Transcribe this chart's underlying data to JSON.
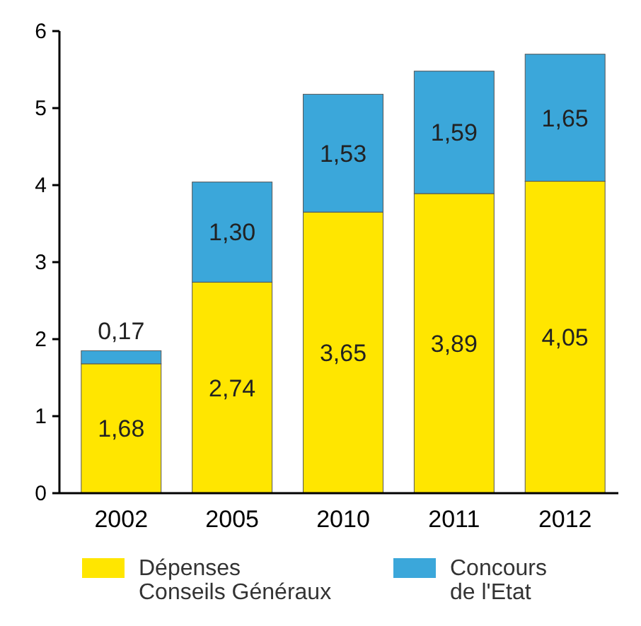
{
  "chart_data": {
    "type": "bar",
    "stacked": true,
    "categories": [
      "2002",
      "2005",
      "2010",
      "2011",
      "2012"
    ],
    "series": [
      {
        "name": "Dépenses Conseils Généraux",
        "color": "#ffe600",
        "values": [
          1.68,
          2.74,
          3.65,
          3.89,
          4.05
        ],
        "value_labels": [
          "1,68",
          "2,74",
          "3,65",
          "3,89",
          "4,05"
        ]
      },
      {
        "name": "Concours de l'Etat",
        "color": "#3ba7da",
        "values": [
          0.17,
          1.3,
          1.53,
          1.59,
          1.65
        ],
        "value_labels": [
          "0,17",
          "1,30",
          "1,53",
          "1,59",
          "1,65"
        ]
      }
    ],
    "ylim": [
      0,
      6
    ],
    "yticks": [
      0,
      1,
      2,
      3,
      4,
      5,
      6
    ],
    "grid": false,
    "legend": "bottom"
  }
}
